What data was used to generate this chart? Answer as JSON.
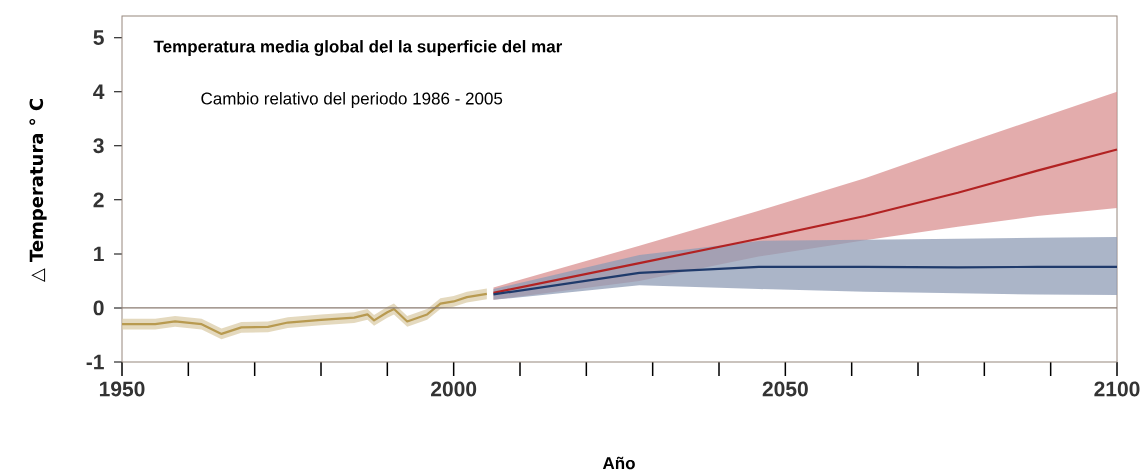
{
  "chart_data": {
    "type": "line",
    "title": "Temperatura media global del la superficie del mar",
    "subtitle": "Cambio relativo del periodo 1986 - 2005",
    "xlabel": "Año",
    "ylabel": "△ Temperatura ° C",
    "xlim": [
      1950,
      2100
    ],
    "ylim": [
      -1,
      5.4
    ],
    "xticks": [
      1950,
      {
        "value": 1960,
        "label": null
      },
      {
        "value": 1970,
        "label": null
      },
      {
        "value": 1980,
        "label": null
      },
      {
        "value": 1990,
        "label": null
      },
      2000,
      {
        "value": 2010,
        "label": null
      },
      {
        "value": 2020,
        "label": null
      },
      {
        "value": 2030,
        "label": null
      },
      {
        "value": 2040,
        "label": null
      },
      2050,
      {
        "value": 2060,
        "label": null
      },
      {
        "value": 2070,
        "label": null
      },
      {
        "value": 2080,
        "label": null
      },
      {
        "value": 2090,
        "label": null
      },
      2100
    ],
    "yticks": [
      -1,
      0,
      1,
      2,
      3,
      4,
      5
    ],
    "ref_lines": [
      {
        "axis": "y",
        "value": 0,
        "color": "#8a7b70"
      }
    ],
    "series": [
      {
        "color": "#b89a50",
        "x": [
          1950,
          1955,
          1958,
          1962,
          1965,
          1968,
          1972,
          1975,
          1980,
          1985,
          1987,
          1988,
          1990,
          1991,
          1993,
          1996,
          1998,
          2000,
          2002,
          2005
        ],
        "values": [
          -0.3,
          -0.3,
          -0.25,
          -0.3,
          -0.48,
          -0.36,
          -0.35,
          -0.27,
          -0.22,
          -0.18,
          -0.12,
          -0.23,
          -0.08,
          -0.02,
          -0.25,
          -0.12,
          0.08,
          0.12,
          0.2,
          0.26
        ],
        "lower": [
          -0.4,
          -0.4,
          -0.35,
          -0.4,
          -0.58,
          -0.46,
          -0.45,
          -0.37,
          -0.32,
          -0.28,
          -0.22,
          -0.33,
          -0.18,
          -0.12,
          -0.35,
          -0.22,
          -0.02,
          0.02,
          0.1,
          0.16
        ],
        "upper": [
          -0.2,
          -0.2,
          -0.15,
          -0.2,
          -0.38,
          -0.26,
          -0.25,
          -0.17,
          -0.12,
          -0.08,
          -0.02,
          -0.13,
          0.02,
          0.08,
          -0.15,
          -0.02,
          0.18,
          0.22,
          0.3,
          0.36
        ]
      },
      {
        "color": "#b22222",
        "x": [
          2006,
          2028,
          2046,
          2062,
          2076,
          2088,
          2100
        ],
        "values": [
          0.28,
          0.83,
          1.28,
          1.7,
          2.13,
          2.54,
          2.93
        ],
        "lower": [
          0.15,
          0.5,
          0.95,
          1.25,
          1.5,
          1.7,
          1.85
        ],
        "upper": [
          0.38,
          1.15,
          1.8,
          2.4,
          3.0,
          3.5,
          4.0
        ]
      },
      {
        "color": "#1f3a6b",
        "x": [
          2006,
          2028,
          2046,
          2062,
          2076,
          2088,
          2100
        ],
        "values": [
          0.25,
          0.65,
          0.76,
          0.76,
          0.75,
          0.76,
          0.76
        ],
        "lower": [
          0.15,
          0.42,
          0.35,
          0.3,
          0.27,
          0.25,
          0.24
        ],
        "upper": [
          0.35,
          0.98,
          1.24,
          1.26,
          1.28,
          1.3,
          1.31
        ]
      }
    ]
  }
}
